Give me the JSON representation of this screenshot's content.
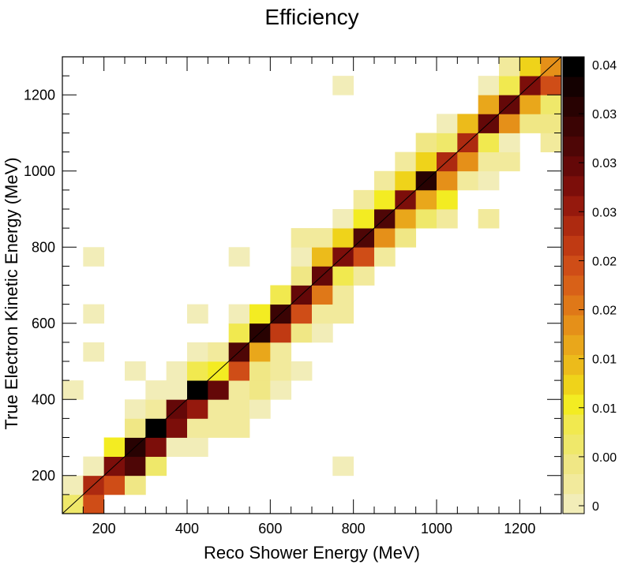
{
  "chart_data": {
    "type": "heatmap",
    "title": "Efficiency",
    "xlabel": "Reco Shower Energy (MeV)",
    "ylabel": "True Electron Kinetic Energy (MeV)",
    "xlim": [
      100,
      1300
    ],
    "ylim": [
      100,
      1300
    ],
    "bin_width": 50,
    "xticks": [
      200,
      400,
      600,
      800,
      1000,
      1200
    ],
    "yticks": [
      200,
      400,
      600,
      800,
      1000,
      1200
    ],
    "colorbar": {
      "min": 0,
      "max": 0.04,
      "tick_labels": [
        "0.04",
        "0.03",
        "0.03",
        "0.03",
        "0.02",
        "0.02",
        "0.01",
        "0.01",
        "0.00",
        "0"
      ],
      "palette": [
        "#f2edb8",
        "#f2ea9c",
        "#f0e785",
        "#efe86a",
        "#f1e94f",
        "#f3ec22",
        "#efd31a",
        "#ecbb1b",
        "#e9a71b",
        "#e59019",
        "#df7818",
        "#d86118",
        "#cf4d17",
        "#c03a13",
        "#ad2a10",
        "#95190d",
        "#7c0e0a",
        "#640808",
        "#4e0606",
        "#3b0404",
        "#280202",
        "#140101",
        "#000000"
      ]
    },
    "cells": [
      [
        0,
        0,
        0.004
      ],
      [
        0,
        0,
        0.002
      ],
      [
        125,
        125,
        0.006
      ],
      [
        125,
        175,
        0.001
      ],
      [
        125,
        425,
        0.001
      ],
      [
        175,
        125,
        0.022
      ],
      [
        175,
        175,
        0.025
      ],
      [
        175,
        225,
        0.001
      ],
      [
        175,
        525,
        0.001
      ],
      [
        175,
        775,
        0.001
      ],
      [
        175,
        625,
        0.001
      ],
      [
        225,
        175,
        0.022
      ],
      [
        225,
        225,
        0.029
      ],
      [
        225,
        275,
        0.009
      ],
      [
        275,
        175,
        0.004
      ],
      [
        275,
        225,
        0.033
      ],
      [
        275,
        275,
        0.035
      ],
      [
        275,
        325,
        0.005
      ],
      [
        275,
        375,
        0.001
      ],
      [
        275,
        475,
        0.001
      ],
      [
        325,
        225,
        0.006
      ],
      [
        325,
        275,
        0.029
      ],
      [
        325,
        325,
        0.039
      ],
      [
        325,
        375,
        0.002
      ],
      [
        325,
        425,
        0.001
      ],
      [
        375,
        275,
        0.001
      ],
      [
        375,
        325,
        0.028
      ],
      [
        375,
        375,
        0.031
      ],
      [
        375,
        425,
        0.001
      ],
      [
        375,
        475,
        0.001
      ],
      [
        425,
        275,
        0.001
      ],
      [
        425,
        325,
        0.003
      ],
      [
        425,
        375,
        0.027
      ],
      [
        425,
        425,
        0.041
      ],
      [
        425,
        475,
        0.008
      ],
      [
        425,
        525,
        0.001
      ],
      [
        425,
        625,
        0.001
      ],
      [
        475,
        325,
        0.002
      ],
      [
        475,
        375,
        0.003
      ],
      [
        475,
        425,
        0.03
      ],
      [
        475,
        475,
        0.01
      ],
      [
        475,
        525,
        0.003
      ],
      [
        525,
        325,
        0.002
      ],
      [
        525,
        375,
        0.003
      ],
      [
        525,
        425,
        0.003
      ],
      [
        525,
        475,
        0.022
      ],
      [
        525,
        525,
        0.033
      ],
      [
        525,
        575,
        0.008
      ],
      [
        525,
        625,
        0.001
      ],
      [
        525,
        775,
        0.001
      ],
      [
        575,
        375,
        0.001
      ],
      [
        575,
        425,
        0.004
      ],
      [
        575,
        475,
        0.005
      ],
      [
        575,
        525,
        0.014
      ],
      [
        575,
        575,
        0.036
      ],
      [
        575,
        625,
        0.009
      ],
      [
        625,
        425,
        0.001
      ],
      [
        625,
        475,
        0.002
      ],
      [
        625,
        525,
        0.002
      ],
      [
        625,
        575,
        0.023
      ],
      [
        625,
        625,
        0.034
      ],
      [
        625,
        675,
        0.008
      ],
      [
        675,
        475,
        0.001
      ],
      [
        675,
        575,
        0.004
      ],
      [
        675,
        625,
        0.021
      ],
      [
        675,
        675,
        0.031
      ],
      [
        675,
        725,
        0.005
      ],
      [
        675,
        775,
        0.001
      ],
      [
        675,
        825,
        0.002
      ],
      [
        725,
        575,
        0.001
      ],
      [
        725,
        625,
        0.003
      ],
      [
        725,
        675,
        0.019
      ],
      [
        725,
        725,
        0.031
      ],
      [
        725,
        775,
        0.013
      ],
      [
        725,
        825,
        0.002
      ],
      [
        775,
        225,
        0.001
      ],
      [
        775,
        625,
        0.002
      ],
      [
        775,
        675,
        0.002
      ],
      [
        775,
        725,
        0.007
      ],
      [
        775,
        775,
        0.029
      ],
      [
        775,
        825,
        0.012
      ],
      [
        775,
        875,
        0.001
      ],
      [
        775,
        1225,
        0.001
      ],
      [
        825,
        725,
        0.003
      ],
      [
        825,
        775,
        0.022
      ],
      [
        825,
        825,
        0.033
      ],
      [
        825,
        875,
        0.009
      ],
      [
        825,
        925,
        0.002
      ],
      [
        875,
        775,
        0.003
      ],
      [
        875,
        825,
        0.017
      ],
      [
        875,
        875,
        0.032
      ],
      [
        875,
        925,
        0.01
      ],
      [
        875,
        975,
        0.003
      ],
      [
        925,
        825,
        0.004
      ],
      [
        925,
        875,
        0.015
      ],
      [
        925,
        925,
        0.029
      ],
      [
        925,
        975,
        0.012
      ],
      [
        925,
        1025,
        0.002
      ],
      [
        975,
        875,
        0.006
      ],
      [
        975,
        925,
        0.015
      ],
      [
        975,
        975,
        0.036
      ],
      [
        975,
        1025,
        0.011
      ],
      [
        975,
        1075,
        0.004
      ],
      [
        1025,
        875,
        0.002
      ],
      [
        1025,
        925,
        0.009
      ],
      [
        1025,
        975,
        0.017
      ],
      [
        1025,
        1025,
        0.026
      ],
      [
        1025,
        1075,
        0.006
      ],
      [
        1025,
        1125,
        0.001
      ],
      [
        1075,
        975,
        0.002
      ],
      [
        1075,
        1025,
        0.016
      ],
      [
        1075,
        1075,
        0.025
      ],
      [
        1075,
        1125,
        0.013
      ],
      [
        1125,
        875,
        0.003
      ],
      [
        1125,
        975,
        0.001
      ],
      [
        1125,
        1025,
        0.002
      ],
      [
        1125,
        1075,
        0.007
      ],
      [
        1125,
        1125,
        0.03
      ],
      [
        1125,
        1175,
        0.014
      ],
      [
        1125,
        1225,
        0.001
      ],
      [
        1175,
        1025,
        0.002
      ],
      [
        1175,
        1075,
        0.001
      ],
      [
        1175,
        1125,
        0.016
      ],
      [
        1175,
        1175,
        0.031
      ],
      [
        1175,
        1225,
        0.007
      ],
      [
        1175,
        1275,
        0.003
      ],
      [
        1225,
        1125,
        0.004
      ],
      [
        1225,
        1175,
        0.014
      ],
      [
        1225,
        1225,
        0.029
      ],
      [
        1225,
        1275,
        0.012
      ],
      [
        1275,
        1075,
        0.002
      ],
      [
        1275,
        1125,
        0.004
      ],
      [
        1275,
        1175,
        0.006
      ],
      [
        1275,
        1225,
        0.021
      ],
      [
        1275,
        1275,
        0.017
      ]
    ]
  }
}
